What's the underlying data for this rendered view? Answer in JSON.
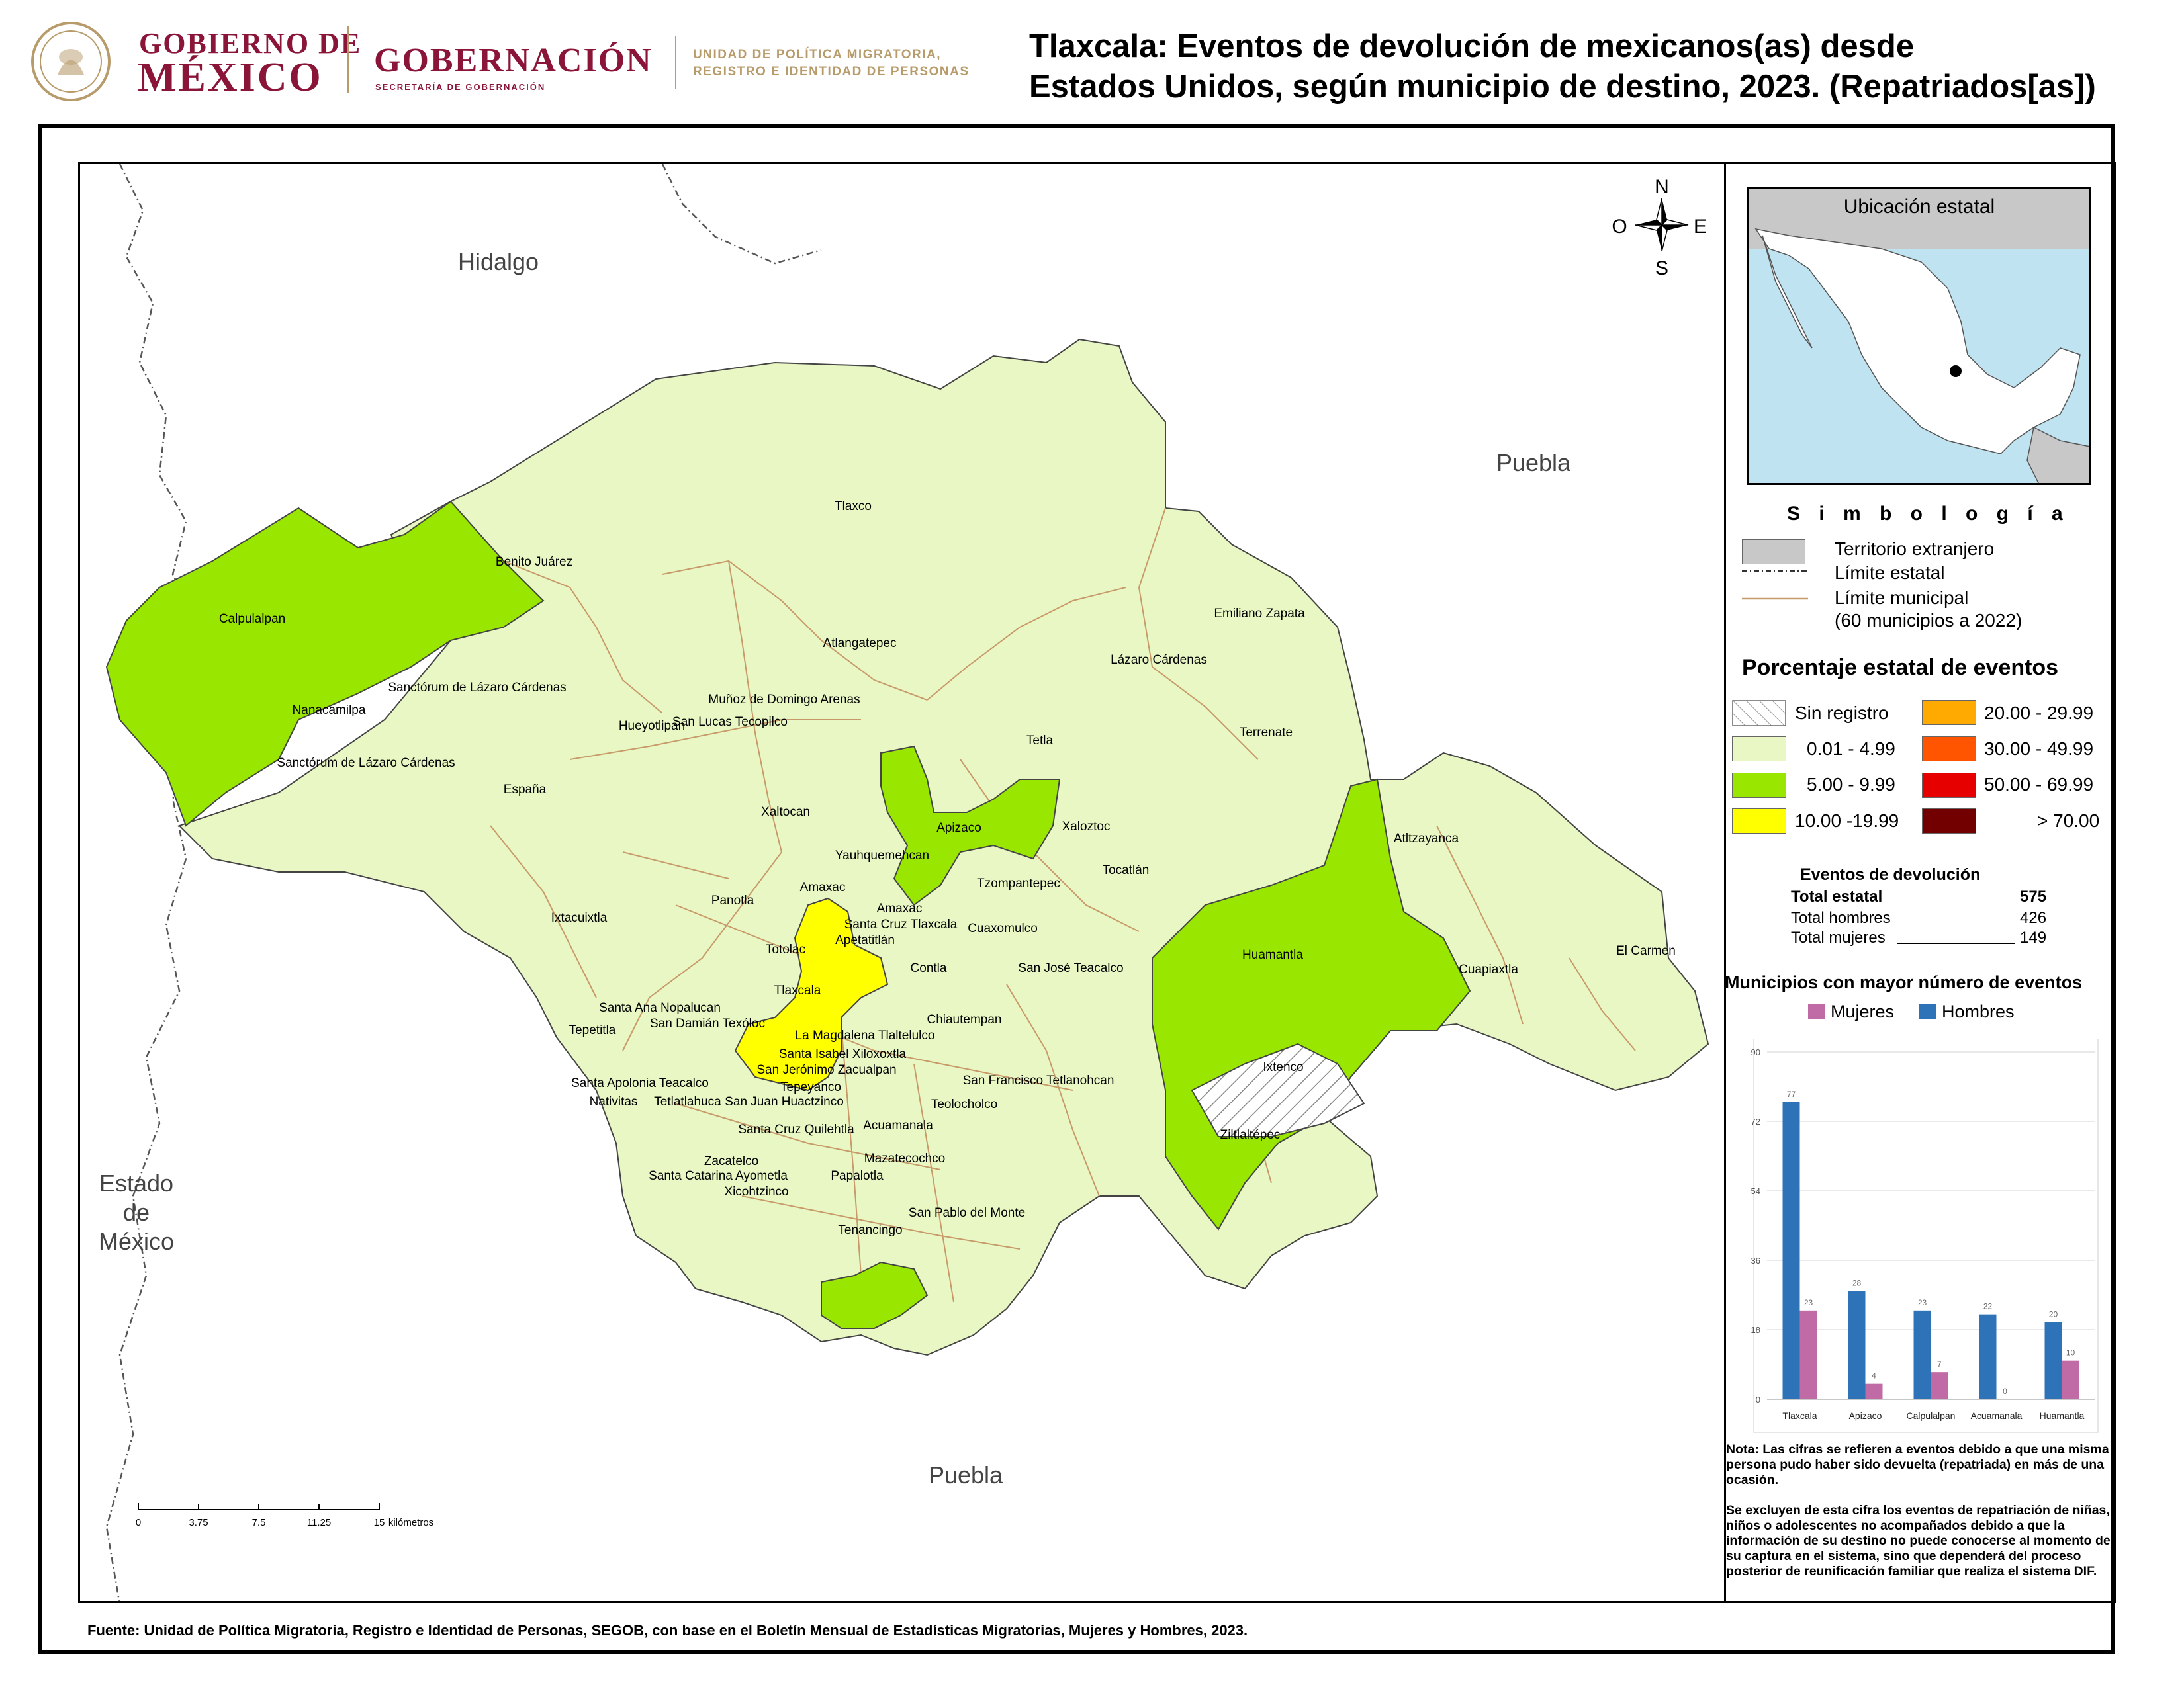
{
  "header": {
    "gobierno_line1": "GOBIERNO DE",
    "gobierno_line2": "MÉXICO",
    "gobernacion": "GOBERNACIÓN",
    "secretaria": "SECRETARÍA DE GOBERNACIÓN",
    "unidad_line1": "UNIDAD DE POLÍTICA MIGRATORIA,",
    "unidad_line2": "REGISTRO E IDENTIDAD DE PERSONAS",
    "title_line1": "Tlaxcala: Eventos de devolución de mexicanos(as) desde",
    "title_line2": "Estados Unidos, según municipio de destino, 2023. (Repatriados[as])"
  },
  "colors": {
    "brand": "#8a1538",
    "gold": "#b79b6b",
    "range_0": "#e8f7c3",
    "range_5": "#99e600",
    "range_10": "#ffff00",
    "range_20": "#ffaa00",
    "range_30": "#ff5500",
    "range_50": "#e60000",
    "range_70": "#730000",
    "mujeres": "#c06ba6",
    "hombres": "#2e73b8"
  },
  "map": {
    "neighbors": {
      "hidalgo": "Hidalgo",
      "puebla_ne": "Puebla",
      "puebla_s": "Puebla",
      "edomex_line1": "Estado",
      "edomex_line2": "de",
      "edomex_line3": "México"
    },
    "compass": {
      "n": "N",
      "s": "S",
      "e": "E",
      "w": "O"
    },
    "scale": {
      "ticks": [
        "0",
        "3.75",
        "7.5",
        "11.25",
        "15"
      ],
      "unit": "kilómetros"
    },
    "municipios": [
      "Tlaxco",
      "Benito Juárez",
      "Calpulalpan",
      "Emiliano Zapata",
      "Atlangatepec",
      "Lázaro Cárdenas",
      "Sanctórum de Lázaro Cárdenas",
      "Muñoz de Domingo Arenas",
      "Nanacamilpa",
      "San Lucas Tecopilco",
      "Hueyotlipan",
      "Terrenate",
      "Tetla",
      "Sanctórum de Lázaro Cárdenas",
      "España",
      "Xaltocan",
      "Apizaco",
      "Xaloztoc",
      "Atltzayanca",
      "Yauhquemehcan",
      "Tocatlán",
      "Tzompantepec",
      "Amaxac",
      "Panotla",
      "Amaxac",
      "Ixtacuixtla",
      "Santa Cruz Tlaxcala",
      "Cuaxomulco",
      "Apetatitlán",
      "Totolac",
      "Huamantla",
      "Contla",
      "San José Teacalco",
      "El Carmen",
      "Cuapiaxtla",
      "Tlaxcala",
      "Santa Ana Nopalucan",
      "Chiautempan",
      "San Damián Texóloc",
      "Tepetitla",
      "La Magdalena Tlaltelulco",
      "Santa Isabel Xiloxoxtla",
      "San Jerónimo Zacualpan",
      "Ixtenco",
      "Santa Apolonia Teacalco",
      "San Francisco Tetlanohcan",
      "Tepeyanco",
      "Nativitas",
      "Tetlatlahuca",
      "San Juan Huactzinco",
      "Teolocholco",
      "Acuamanala",
      "Santa Cruz Quilehtla",
      "Ziltlaltépec",
      "Mazatecochco",
      "Zacatelco",
      "Santa Catarina Ayometla",
      "Papalotla",
      "Xicohtzinco",
      "San Pablo del Monte",
      "Tenancingo"
    ]
  },
  "inset": {
    "title": "Ubicación estatal"
  },
  "legend": {
    "title": "S i m b o l o g í a",
    "territorio": "Territorio extranjero",
    "limite_estatal": "Límite estatal",
    "limite_municipal": "Límite municipal",
    "municipios_note": "(60 municipios a 2022)",
    "pct_title": "Porcentaje estatal de eventos",
    "ranges": [
      {
        "label": "Sin registro",
        "color": "hatch"
      },
      {
        "label": "0.01  - 4.99",
        "color": "#e8f7c3"
      },
      {
        "label": "5.00  - 9.99",
        "color": "#99e600"
      },
      {
        "label": "10.00 -19.99",
        "color": "#ffff00"
      },
      {
        "label": "20.00 - 29.99",
        "color": "#ffaa00"
      },
      {
        "label": "30.00 - 49.99",
        "color": "#ff5500"
      },
      {
        "label": "50.00 - 69.99",
        "color": "#e60000"
      },
      {
        "label": "> 70.00",
        "color": "#730000"
      }
    ]
  },
  "events": {
    "title": "Eventos de devolución",
    "total_label": "Total estatal",
    "total": "575",
    "hombres_label": "Total hombres",
    "hombres": "426",
    "mujeres_label": "Total mujeres",
    "mujeres": "149"
  },
  "top_chart": {
    "title": "Municipios con mayor número de eventos",
    "legend_mujeres": "Mujeres",
    "legend_hombres": "Hombres"
  },
  "chart_data": {
    "type": "bar",
    "title": "Municipios con mayor número de eventos",
    "categories": [
      "Tlaxcala",
      "Apizaco",
      "Calpulalpan",
      "Acuamanala",
      "Huamantla"
    ],
    "series": [
      {
        "name": "Hombres",
        "values": [
          77,
          28,
          23,
          22,
          20
        ]
      },
      {
        "name": "Mujeres",
        "values": [
          23,
          4,
          7,
          0,
          10
        ]
      }
    ],
    "yticks": [
      "0",
      "18",
      "36",
      "54",
      "72",
      "90"
    ],
    "ylim": [
      0,
      90
    ],
    "grid": true,
    "legend": "top"
  },
  "note": {
    "p1": "Nota: Las cifras se refieren a eventos debido a que una misma persona pudo haber sido devuelta (repatriada) en más de una ocasión.",
    "p2": "Se excluyen de esta cifra los eventos de repatriación de niñas, niños o adolescentes no acompañados debido a que la información de su destino no puede conocerse al momento de su captura en el sistema, sino que dependerá del proceso posterior de reunificación familiar que realiza el sistema DIF."
  },
  "source": "Fuente: Unidad de Política Migratoria, Registro e Identidad de Personas, SEGOB, con base en el Boletín Mensual de Estadísticas Migratorias, Mujeres y Hombres, 2023."
}
